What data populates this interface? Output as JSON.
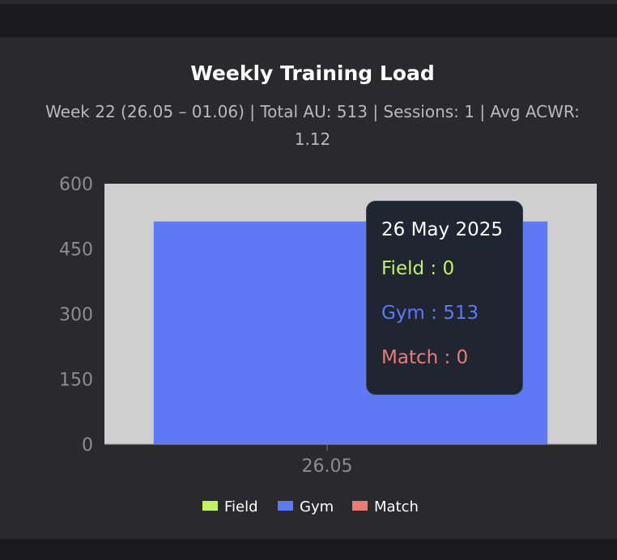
{
  "header": {
    "title": "Weekly Training Load",
    "subtitle_line1": "Week 22 (26.05 – 01.06)  |  Total AU: 513  |  Sessions: 1  |  Avg ACWR:",
    "subtitle_line2": "1.12"
  },
  "tooltip": {
    "date": "26 May 2025",
    "field": "Field : 0",
    "gym": "Gym : 513",
    "match": "Match : 0"
  },
  "legend": [
    {
      "label": "Field",
      "color": "#c4f25a"
    },
    {
      "label": "Gym",
      "color": "#5f78f5"
    },
    {
      "label": "Match",
      "color": "#ec7b73"
    }
  ],
  "chart_data": {
    "type": "bar",
    "stacked": true,
    "categories": [
      "26.05"
    ],
    "series": [
      {
        "name": "Field",
        "values": [
          0
        ],
        "color": "#c4f25a"
      },
      {
        "name": "Gym",
        "values": [
          513
        ],
        "color": "#5f78f5"
      },
      {
        "name": "Match",
        "values": [
          0
        ],
        "color": "#ec7b73"
      }
    ],
    "title": "Weekly Training Load",
    "ylim": [
      0,
      600
    ],
    "yticks": [
      "0",
      "150",
      "300",
      "450",
      "600"
    ],
    "legend_position": "bottom",
    "plot_background": "#cfcfcf"
  }
}
